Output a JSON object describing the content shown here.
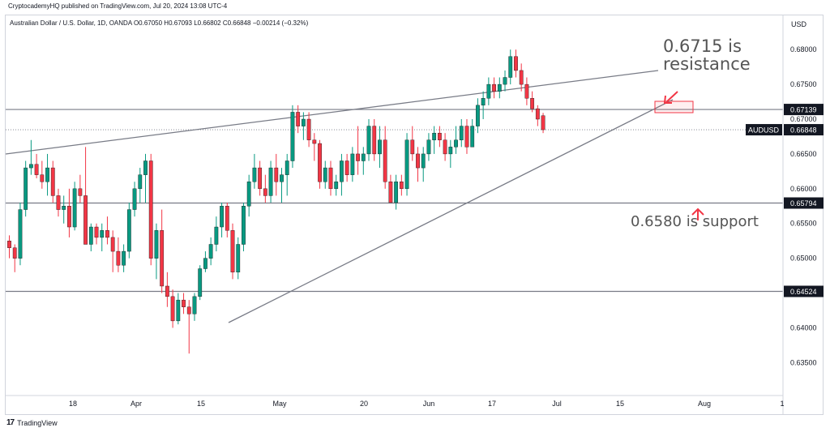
{
  "header": {
    "published": "CryptocademyHQ published on TradingView.com, Jul 20, 2024 13:08 UTC-4",
    "symbol_line": "Australian Dollar / U.S. Dollar, 1D, OANDA  O0.67050  H0.67093  L0.66802  C0.66848  −0.00214 (−0.32%)"
  },
  "footer": {
    "brand": "TradingView",
    "logo": "17"
  },
  "colors": {
    "up": "#089981",
    "down": "#f23645",
    "line": "#787b86",
    "annotation_arrow": "#f23645"
  },
  "chart_data": {
    "type": "candlestick",
    "title": "",
    "currency": "USD",
    "ylim": [
      0.6305,
      0.6848
    ],
    "y_ticks": [
      "0.68000",
      "0.67500",
      "0.67000",
      "0.66500",
      "0.66000",
      "0.65500",
      "0.65000",
      "0.64000",
      "0.63500"
    ],
    "x_ticks": [
      "18",
      "Apr",
      "15",
      "May",
      "20",
      "Jun",
      "17",
      "Jul",
      "15",
      "Aug",
      "1"
    ],
    "price_labels": [
      {
        "label": "",
        "value": "0.67139"
      },
      {
        "label": "AUDUSD",
        "value": "0.66848"
      },
      {
        "label": "",
        "value": "0.65794"
      },
      {
        "label": "",
        "value": "0.64524"
      }
    ],
    "horizontal_levels": [
      0.67139,
      0.65794,
      0.64524
    ],
    "annotations": [
      {
        "text": "0.6715 is",
        "value": 0.6797
      },
      {
        "text": "resistance",
        "value": 0.6771
      },
      {
        "text": "0.6580 is support",
        "value": 0.6546
      }
    ],
    "candles": [
      [
        0.6525,
        0.6533,
        0.65,
        0.6515
      ],
      [
        0.6515,
        0.652,
        0.648,
        0.65
      ],
      [
        0.65,
        0.658,
        0.649,
        0.657
      ],
      [
        0.657,
        0.664,
        0.656,
        0.663
      ],
      [
        0.663,
        0.667,
        0.662,
        0.6635
      ],
      [
        0.6635,
        0.665,
        0.6615,
        0.662
      ],
      [
        0.662,
        0.664,
        0.66,
        0.661
      ],
      [
        0.661,
        0.665,
        0.659,
        0.663
      ],
      [
        0.663,
        0.664,
        0.658,
        0.659
      ],
      [
        0.659,
        0.66,
        0.656,
        0.657
      ],
      [
        0.657,
        0.659,
        0.655,
        0.6575
      ],
      [
        0.6575,
        0.66,
        0.653,
        0.6545
      ],
      [
        0.6545,
        0.661,
        0.654,
        0.66
      ],
      [
        0.66,
        0.662,
        0.658,
        0.659
      ],
      [
        0.659,
        0.666,
        0.652,
        0.652
      ],
      [
        0.652,
        0.655,
        0.651,
        0.6545
      ],
      [
        0.6545,
        0.655,
        0.652,
        0.653
      ],
      [
        0.653,
        0.655,
        0.651,
        0.654
      ],
      [
        0.654,
        0.656,
        0.652,
        0.653
      ],
      [
        0.653,
        0.654,
        0.648,
        0.651
      ],
      [
        0.651,
        0.653,
        0.648,
        0.649
      ],
      [
        0.649,
        0.652,
        0.648,
        0.651
      ],
      [
        0.651,
        0.658,
        0.65,
        0.657
      ],
      [
        0.657,
        0.661,
        0.656,
        0.66
      ],
      [
        0.66,
        0.663,
        0.658,
        0.662
      ],
      [
        0.662,
        0.665,
        0.658,
        0.664
      ],
      [
        0.664,
        0.665,
        0.649,
        0.65
      ],
      [
        0.65,
        0.655,
        0.647,
        0.654
      ],
      [
        0.654,
        0.657,
        0.645,
        0.646
      ],
      [
        0.646,
        0.648,
        0.643,
        0.6445
      ],
      [
        0.6445,
        0.6455,
        0.64,
        0.641
      ],
      [
        0.641,
        0.645,
        0.6405,
        0.644
      ],
      [
        0.644,
        0.645,
        0.642,
        0.643
      ],
      [
        0.643,
        0.644,
        0.6363,
        0.642
      ],
      [
        0.642,
        0.645,
        0.641,
        0.6445
      ],
      [
        0.6445,
        0.649,
        0.644,
        0.6485
      ],
      [
        0.6485,
        0.651,
        0.648,
        0.65
      ],
      [
        0.65,
        0.653,
        0.649,
        0.652
      ],
      [
        0.652,
        0.656,
        0.651,
        0.6545
      ],
      [
        0.6545,
        0.658,
        0.653,
        0.6575
      ],
      [
        0.6575,
        0.658,
        0.653,
        0.654
      ],
      [
        0.654,
        0.655,
        0.647,
        0.648
      ],
      [
        0.648,
        0.653,
        0.647,
        0.652
      ],
      [
        0.652,
        0.658,
        0.651,
        0.6575
      ],
      [
        0.6575,
        0.662,
        0.656,
        0.661
      ],
      [
        0.661,
        0.665,
        0.66,
        0.663
      ],
      [
        0.663,
        0.664,
        0.659,
        0.66
      ],
      [
        0.66,
        0.662,
        0.658,
        0.659
      ],
      [
        0.659,
        0.664,
        0.658,
        0.663
      ],
      [
        0.663,
        0.665,
        0.659,
        0.661
      ],
      [
        0.661,
        0.663,
        0.658,
        0.662
      ],
      [
        0.662,
        0.665,
        0.659,
        0.664
      ],
      [
        0.664,
        0.672,
        0.663,
        0.671
      ],
      [
        0.671,
        0.672,
        0.668,
        0.669
      ],
      [
        0.669,
        0.671,
        0.667,
        0.67
      ],
      [
        0.67,
        0.671,
        0.666,
        0.667
      ],
      [
        0.667,
        0.668,
        0.664,
        0.6665
      ],
      [
        0.6665,
        0.667,
        0.66,
        0.661
      ],
      [
        0.661,
        0.664,
        0.66,
        0.663
      ],
      [
        0.663,
        0.664,
        0.659,
        0.66
      ],
      [
        0.66,
        0.662,
        0.659,
        0.661
      ],
      [
        0.661,
        0.665,
        0.659,
        0.664
      ],
      [
        0.664,
        0.665,
        0.661,
        0.662
      ],
      [
        0.662,
        0.666,
        0.661,
        0.665
      ],
      [
        0.665,
        0.669,
        0.662,
        0.664
      ],
      [
        0.664,
        0.666,
        0.662,
        0.665
      ],
      [
        0.665,
        0.67,
        0.664,
        0.669
      ],
      [
        0.669,
        0.67,
        0.664,
        0.665
      ],
      [
        0.665,
        0.669,
        0.663,
        0.667
      ],
      [
        0.667,
        0.669,
        0.66,
        0.661
      ],
      [
        0.661,
        0.662,
        0.658,
        0.658
      ],
      [
        0.658,
        0.662,
        0.657,
        0.661
      ],
      [
        0.661,
        0.662,
        0.659,
        0.66
      ],
      [
        0.66,
        0.668,
        0.659,
        0.667
      ],
      [
        0.667,
        0.669,
        0.664,
        0.665
      ],
      [
        0.665,
        0.666,
        0.661,
        0.663
      ],
      [
        0.663,
        0.666,
        0.661,
        0.665
      ],
      [
        0.665,
        0.668,
        0.664,
        0.667
      ],
      [
        0.667,
        0.669,
        0.665,
        0.668
      ],
      [
        0.668,
        0.669,
        0.666,
        0.667
      ],
      [
        0.667,
        0.668,
        0.664,
        0.665
      ],
      [
        0.665,
        0.667,
        0.663,
        0.666
      ],
      [
        0.666,
        0.669,
        0.665,
        0.667
      ],
      [
        0.667,
        0.67,
        0.666,
        0.669
      ],
      [
        0.669,
        0.67,
        0.665,
        0.666
      ],
      [
        0.666,
        0.67,
        0.666,
        0.669
      ],
      [
        0.669,
        0.673,
        0.668,
        0.672
      ],
      [
        0.672,
        0.674,
        0.67,
        0.673
      ],
      [
        0.673,
        0.676,
        0.672,
        0.675
      ],
      [
        0.675,
        0.676,
        0.673,
        0.674
      ],
      [
        0.674,
        0.676,
        0.673,
        0.675
      ],
      [
        0.675,
        0.677,
        0.674,
        0.676
      ],
      [
        0.676,
        0.68,
        0.675,
        0.679
      ],
      [
        0.679,
        0.68,
        0.676,
        0.677
      ],
      [
        0.677,
        0.678,
        0.674,
        0.675
      ],
      [
        0.675,
        0.676,
        0.672,
        0.673
      ],
      [
        0.673,
        0.674,
        0.671,
        0.6715
      ],
      [
        0.6715,
        0.672,
        0.669,
        0.67
      ],
      [
        0.6705,
        0.6709,
        0.668,
        0.66848
      ]
    ]
  }
}
